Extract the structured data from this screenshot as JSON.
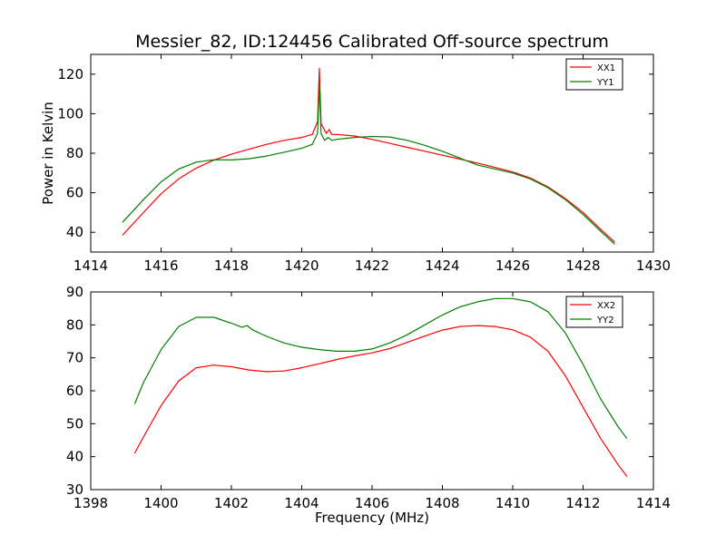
{
  "chart_data": [
    {
      "type": "line",
      "title": "Messier_82, ID:124456 Calibrated Off-source spectrum",
      "xlabel": "",
      "ylabel": "Power in Kelvin",
      "xlim": [
        1414,
        1430
      ],
      "ylim": [
        30,
        130
      ],
      "xticks": [
        1414,
        1416,
        1418,
        1420,
        1422,
        1424,
        1426,
        1428,
        1430
      ],
      "yticks": [
        40,
        60,
        80,
        100,
        120
      ],
      "legend_position": "top-right",
      "grid": false,
      "series": [
        {
          "name": "XX1",
          "color": "#ff0000",
          "x": [
            1414.9,
            1415.5,
            1416.0,
            1416.5,
            1417.0,
            1417.5,
            1418.0,
            1418.5,
            1419.0,
            1419.5,
            1420.0,
            1420.3,
            1420.45,
            1420.5,
            1420.55,
            1420.7,
            1420.78,
            1420.85,
            1421.0,
            1421.5,
            1422.0,
            1422.5,
            1423.0,
            1423.5,
            1424.0,
            1424.5,
            1425.0,
            1425.5,
            1426.0,
            1426.5,
            1427.0,
            1427.5,
            1428.0,
            1428.5,
            1428.9
          ],
          "y": [
            38.5,
            50.0,
            59.5,
            67.0,
            72.5,
            76.5,
            79.5,
            82.0,
            84.5,
            86.5,
            88.0,
            89.5,
            96.0,
            123.0,
            95.0,
            90.0,
            92.0,
            89.5,
            89.5,
            88.7,
            87.0,
            85.0,
            83.0,
            81.0,
            79.0,
            77.0,
            75.0,
            72.8,
            70.5,
            67.5,
            63.0,
            57.0,
            50.0,
            41.5,
            35.0
          ]
        },
        {
          "name": "YY1",
          "color": "#008000",
          "x": [
            1414.9,
            1415.5,
            1416.0,
            1416.5,
            1417.0,
            1417.5,
            1418.0,
            1418.5,
            1419.0,
            1419.5,
            1420.0,
            1420.3,
            1420.45,
            1420.5,
            1420.55,
            1420.65,
            1420.75,
            1420.85,
            1421.0,
            1421.5,
            1422.0,
            1422.5,
            1423.0,
            1423.5,
            1424.0,
            1424.5,
            1425.0,
            1425.5,
            1426.0,
            1426.5,
            1427.0,
            1427.5,
            1428.0,
            1428.5,
            1428.9
          ],
          "y": [
            45.0,
            56.5,
            65.5,
            72.0,
            75.5,
            76.7,
            76.6,
            77.2,
            78.6,
            80.5,
            82.5,
            84.5,
            90.0,
            115.0,
            90.0,
            86.5,
            88.0,
            86.5,
            87.0,
            88.0,
            88.5,
            88.2,
            86.5,
            84.0,
            81.0,
            77.5,
            74.0,
            72.0,
            70.0,
            67.0,
            62.5,
            56.5,
            49.0,
            40.5,
            34.0
          ]
        }
      ]
    },
    {
      "type": "line",
      "title": "",
      "xlabel": "Frequency (MHz)",
      "ylabel": "",
      "xlim": [
        1398,
        1414
      ],
      "ylim": [
        30,
        90
      ],
      "xticks": [
        1398,
        1400,
        1402,
        1404,
        1406,
        1408,
        1410,
        1412,
        1414
      ],
      "yticks": [
        30,
        40,
        50,
        60,
        70,
        80,
        90
      ],
      "legend_position": "top-right",
      "grid": false,
      "series": [
        {
          "name": "XX2",
          "color": "#ff0000",
          "x": [
            1399.25,
            1399.5,
            1400.0,
            1400.5,
            1401.0,
            1401.5,
            1402.0,
            1402.5,
            1403.0,
            1403.5,
            1404.0,
            1404.5,
            1405.0,
            1405.5,
            1406.0,
            1406.5,
            1407.0,
            1407.5,
            1408.0,
            1408.5,
            1409.0,
            1409.5,
            1410.0,
            1410.5,
            1411.0,
            1411.5,
            1412.0,
            1412.5,
            1413.0,
            1413.25
          ],
          "y": [
            41.0,
            46.0,
            55.5,
            63.0,
            67.0,
            67.8,
            67.3,
            66.3,
            65.8,
            66.0,
            67.0,
            68.2,
            69.5,
            70.6,
            71.5,
            72.8,
            74.7,
            76.6,
            78.4,
            79.5,
            79.8,
            79.5,
            78.5,
            76.3,
            72.0,
            64.5,
            55.0,
            45.5,
            37.5,
            34.0
          ]
        },
        {
          "name": "YY2",
          "color": "#008000",
          "x": [
            1399.25,
            1399.5,
            1400.0,
            1400.5,
            1401.0,
            1401.5,
            1402.0,
            1402.3,
            1402.45,
            1402.6,
            1403.0,
            1403.5,
            1404.0,
            1404.5,
            1405.0,
            1405.5,
            1406.0,
            1406.5,
            1407.0,
            1407.5,
            1408.0,
            1408.5,
            1409.0,
            1409.5,
            1410.0,
            1410.5,
            1411.0,
            1411.5,
            1412.0,
            1412.5,
            1413.0,
            1413.25
          ],
          "y": [
            56.0,
            62.5,
            72.5,
            79.5,
            82.3,
            82.3,
            80.5,
            79.3,
            79.8,
            78.5,
            76.5,
            74.5,
            73.2,
            72.5,
            72.0,
            72.0,
            72.7,
            74.5,
            77.0,
            80.0,
            83.0,
            85.5,
            87.0,
            88.0,
            88.0,
            87.0,
            84.0,
            77.5,
            68.0,
            57.5,
            49.0,
            45.5
          ]
        }
      ]
    }
  ]
}
